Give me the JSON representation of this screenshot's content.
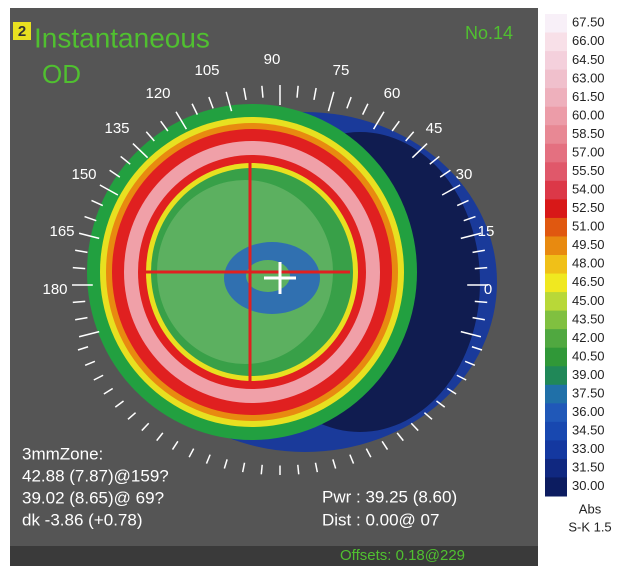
{
  "header": {
    "badge": "2",
    "title": "Instantaneous",
    "eye": "OD",
    "number": "No.14"
  },
  "angles": [
    "90",
    "105",
    "75",
    "120",
    "60",
    "135",
    "45",
    "150",
    "30",
    "165",
    "15",
    "180",
    "0"
  ],
  "zone": {
    "label": "3mmZone:",
    "lines": [
      "42.88 (7.87)@159?",
      "39.02 (8.65)@ 69?",
      "dk -3.86 (+0.78)"
    ]
  },
  "power": {
    "pwr": "Pwr : 39.25 (8.60)",
    "dist": "Dist : 0.00@ 07"
  },
  "offsets": "Offsets: 0.18@229",
  "scale": {
    "entries": [
      {
        "label": "67.50",
        "color": "#f8f0f8"
      },
      {
        "label": "66.00",
        "color": "#f8e0e8"
      },
      {
        "label": "64.50",
        "color": "#f4d0dc"
      },
      {
        "label": "63.00",
        "color": "#f0c0cc"
      },
      {
        "label": "61.50",
        "color": "#eeb0bc"
      },
      {
        "label": "60.00",
        "color": "#ec9ca8"
      },
      {
        "label": "58.50",
        "color": "#e88894"
      },
      {
        "label": "57.00",
        "color": "#e47080"
      },
      {
        "label": "55.50",
        "color": "#e0586a"
      },
      {
        "label": "54.00",
        "color": "#dc3848"
      },
      {
        "label": "52.50",
        "color": "#d81818"
      },
      {
        "label": "51.00",
        "color": "#e05810"
      },
      {
        "label": "49.50",
        "color": "#e88a10"
      },
      {
        "label": "48.00",
        "color": "#f0c018"
      },
      {
        "label": "46.50",
        "color": "#f0e820"
      },
      {
        "label": "45.00",
        "color": "#b8d838"
      },
      {
        "label": "43.50",
        "color": "#80c040"
      },
      {
        "label": "42.00",
        "color": "#50a840"
      },
      {
        "label": "40.50",
        "color": "#309838"
      },
      {
        "label": "39.00",
        "color": "#208858"
      },
      {
        "label": "37.50",
        "color": "#2070a8"
      },
      {
        "label": "36.00",
        "color": "#2058b8"
      },
      {
        "label": "34.50",
        "color": "#1848b0"
      },
      {
        "label": "33.00",
        "color": "#1438a0"
      },
      {
        "label": "31.50",
        "color": "#102880"
      },
      {
        "label": "30.00",
        "color": "#0c1c60"
      }
    ],
    "mode": "Abs",
    "step": "S-K 1.5"
  }
}
